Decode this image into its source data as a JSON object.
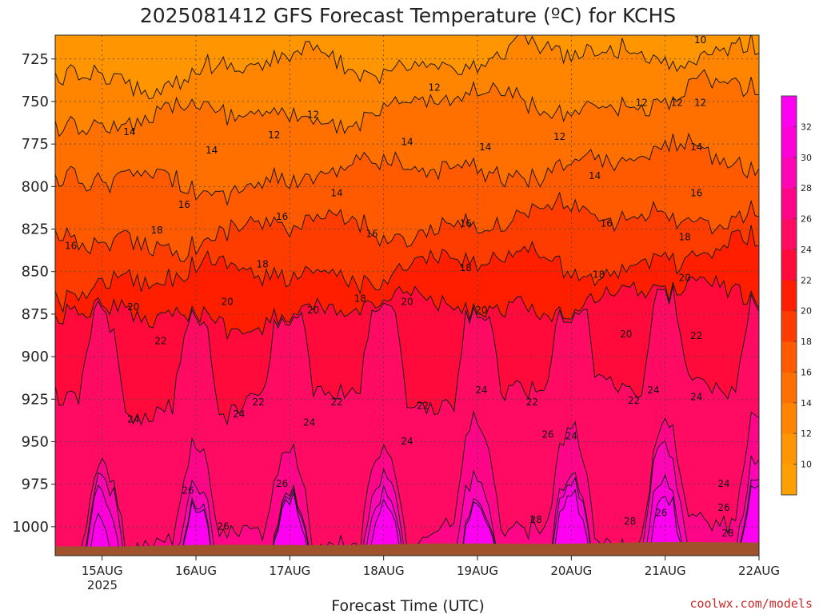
{
  "chart_data": {
    "type": "heatmap",
    "title": "2025081412 GFS Forecast Temperature (ºC) for KCHS",
    "xlabel": "Forecast Time (UTC)",
    "ylabel": "",
    "credit": "coolwx.com/models",
    "x_ticks": [
      "15AUG",
      "16AUG",
      "17AUG",
      "18AUG",
      "19AUG",
      "20AUG",
      "21AUG",
      "22AUG"
    ],
    "x_tick_hours": [
      12,
      36,
      60,
      84,
      108,
      132,
      156,
      180
    ],
    "x_year_label": "2025",
    "xlim_hours": [
      0,
      180
    ],
    "y_ticks": [
      725,
      750,
      775,
      800,
      825,
      850,
      875,
      900,
      925,
      950,
      975,
      1000
    ],
    "ylim": [
      711,
      1017
    ],
    "y_unit": "hPa",
    "grid": true,
    "colorbar": {
      "levels": [
        8,
        10,
        12,
        14,
        16,
        18,
        20,
        22,
        24,
        26,
        28,
        30,
        32,
        34
      ],
      "colors": [
        "#ffa000",
        "#ff9500",
        "#ff8400",
        "#ff7000",
        "#ff5a00",
        "#ff3c00",
        "#ff1e00",
        "#ff0a3a",
        "#ff0b63",
        "#ff0588",
        "#ff06b4",
        "#ff00d8",
        "#ff00f0"
      ],
      "labels": [
        "10",
        "12",
        "14",
        "16",
        "18",
        "20",
        "22",
        "24",
        "26",
        "28",
        "30",
        "32"
      ]
    },
    "contour_levels": [
      10,
      12,
      14,
      16,
      18,
      20,
      22,
      24,
      26,
      28,
      30,
      32
    ],
    "contour_pressure_at_start": {
      "12": 736,
      "14": 763,
      "16": 800,
      "18": 832,
      "20": 857,
      "22": 880,
      "24": 922,
      "26": 975,
      "28": 996,
      "30": 1005,
      "32": 1011
    },
    "contour_labels": [
      {
        "text": "16",
        "hour": 4,
        "p": 835
      },
      {
        "text": "14",
        "hour": 19,
        "p": 768
      },
      {
        "text": "18",
        "hour": 26,
        "p": 826
      },
      {
        "text": "20",
        "hour": 20,
        "p": 871
      },
      {
        "text": "22",
        "hour": 27,
        "p": 891
      },
      {
        "text": "24",
        "hour": 20,
        "p": 937
      },
      {
        "text": "16",
        "hour": 33,
        "p": 811
      },
      {
        "text": "14",
        "hour": 40,
        "p": 779
      },
      {
        "text": "22",
        "hour": 52,
        "p": 927
      },
      {
        "text": "24",
        "hour": 47,
        "p": 934
      },
      {
        "text": "26",
        "hour": 34,
        "p": 979
      },
      {
        "text": "26",
        "hour": 43,
        "p": 1000
      },
      {
        "text": "20",
        "hour": 44,
        "p": 868
      },
      {
        "text": "18",
        "hour": 53,
        "p": 846
      },
      {
        "text": "16",
        "hour": 58,
        "p": 818
      },
      {
        "text": "12",
        "hour": 56,
        "p": 770
      },
      {
        "text": "12",
        "hour": 66,
        "p": 758
      },
      {
        "text": "24",
        "hour": 65,
        "p": 939
      },
      {
        "text": "26",
        "hour": 58,
        "p": 975
      },
      {
        "text": "20",
        "hour": 66,
        "p": 873
      },
      {
        "text": "22",
        "hour": 72,
        "p": 927
      },
      {
        "text": "14",
        "hour": 72,
        "p": 804
      },
      {
        "text": "16",
        "hour": 81,
        "p": 828
      },
      {
        "text": "18",
        "hour": 78,
        "p": 866
      },
      {
        "text": "20",
        "hour": 90,
        "p": 868
      },
      {
        "text": "14",
        "hour": 90,
        "p": 774
      },
      {
        "text": "12",
        "hour": 97,
        "p": 742
      },
      {
        "text": "22",
        "hour": 94,
        "p": 929
      },
      {
        "text": "24",
        "hour": 90,
        "p": 950
      },
      {
        "text": "16",
        "hour": 105,
        "p": 822
      },
      {
        "text": "18",
        "hour": 105,
        "p": 848
      },
      {
        "text": "20",
        "hour": 109,
        "p": 873
      },
      {
        "text": "24",
        "hour": 109,
        "p": 920
      },
      {
        "text": "14",
        "hour": 110,
        "p": 777
      },
      {
        "text": "22",
        "hour": 122,
        "p": 927
      },
      {
        "text": "26",
        "hour": 126,
        "p": 946
      },
      {
        "text": "24",
        "hour": 132,
        "p": 947
      },
      {
        "text": "28",
        "hour": 123,
        "p": 996
      },
      {
        "text": "12",
        "hour": 129,
        "p": 771
      },
      {
        "text": "14",
        "hour": 138,
        "p": 794
      },
      {
        "text": "18",
        "hour": 139,
        "p": 852
      },
      {
        "text": "16",
        "hour": 141,
        "p": 822
      },
      {
        "text": "20",
        "hour": 146,
        "p": 887
      },
      {
        "text": "22",
        "hour": 148,
        "p": 926
      },
      {
        "text": "24",
        "hour": 153,
        "p": 920
      },
      {
        "text": "28",
        "hour": 147,
        "p": 997
      },
      {
        "text": "26",
        "hour": 155,
        "p": 992
      },
      {
        "text": "12",
        "hour": 150,
        "p": 751
      },
      {
        "text": "12",
        "hour": 159,
        "p": 751
      },
      {
        "text": "18",
        "hour": 161,
        "p": 830
      },
      {
        "text": "20",
        "hour": 161,
        "p": 854
      },
      {
        "text": "22",
        "hour": 164,
        "p": 888
      },
      {
        "text": "24",
        "hour": 164,
        "p": 924
      },
      {
        "text": "16",
        "hour": 164,
        "p": 804
      },
      {
        "text": "14",
        "hour": 164,
        "p": 777
      },
      {
        "text": "12",
        "hour": 165,
        "p": 751
      },
      {
        "text": "10",
        "hour": 165,
        "p": 714
      },
      {
        "text": "24",
        "hour": 171,
        "p": 975
      },
      {
        "text": "26",
        "hour": 171,
        "p": 989
      },
      {
        "text": "28",
        "hour": 172,
        "p": 1004
      }
    ],
    "terrain_color": "#a0522d"
  }
}
